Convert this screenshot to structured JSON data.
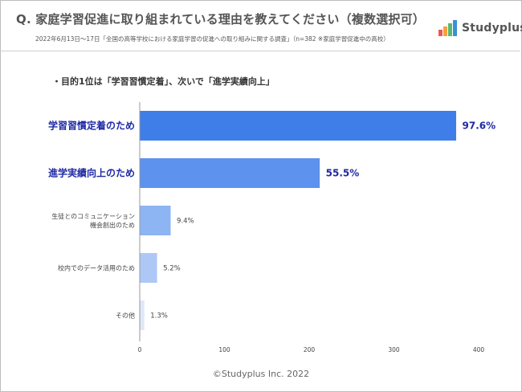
{
  "header": {
    "question": "Q. 家庭学習促進に取り組まれている理由を教えてください（複数選択可）",
    "note": "2022年6月13日～17日「全国の高等学校における家庭学習の促進への取り組みに関する調査」（n=382 ※家庭学習促進中の高校）",
    "logo_text": "Studyplus"
  },
  "headline": "・目的1位は「学習習慣定着」、次いで「進学実績向上」",
  "footer": {
    "copyright": "©Studyplus Inc. 2022"
  },
  "chart_data": {
    "type": "bar",
    "orientation": "horizontal",
    "categories": [
      [
        "学習習慣定着のため"
      ],
      [
        "進学実績向上のため"
      ],
      [
        "生徒とのコミュニケーション",
        "機会創出のため"
      ],
      [
        "校内でのデータ活用のため"
      ],
      [
        "その他"
      ]
    ],
    "values": [
      373,
      212,
      36,
      20,
      5
    ],
    "data_labels": [
      "97.6%",
      "55.5%",
      "9.4%",
      "5.2%",
      "1.3%"
    ],
    "highlight": [
      true,
      true,
      false,
      false,
      false
    ],
    "xlim": [
      0,
      400
    ],
    "xticks": [
      0,
      100,
      200,
      300,
      400
    ],
    "grid": false,
    "colors": {
      "highlight": "#3f7ee8",
      "highlight_2": "#5d92ef",
      "normal": "#8db4f3",
      "normal_light": "#adc8f6",
      "faint": "#dfe8f8",
      "highlight_text": "#1f2aa5",
      "text": "#444444",
      "axis": "#999999"
    }
  }
}
